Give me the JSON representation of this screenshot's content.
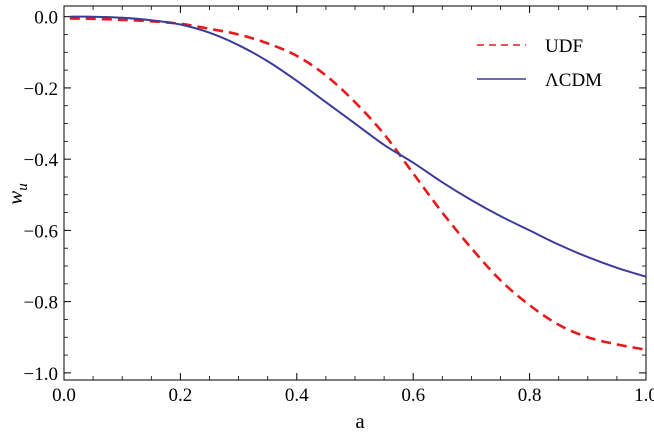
{
  "chart_data": {
    "type": "line",
    "xlabel": "a",
    "ylabel": "w",
    "ylabel_sub": "u",
    "xlim": [
      0.0,
      1.0
    ],
    "ylim": [
      -1.02,
      0.03
    ],
    "x_ticks": [
      0.0,
      0.2,
      0.4,
      0.6,
      0.8,
      1.0
    ],
    "x_tick_labels": [
      "0.0",
      "0.2",
      "0.4",
      "0.6",
      "0.8",
      "1.0"
    ],
    "y_ticks": [
      0.0,
      -0.2,
      -0.4,
      -0.6,
      -0.8,
      -1.0
    ],
    "y_tick_labels": [
      "0.0",
      "−0.2",
      "−0.4",
      "−0.6",
      "−0.8",
      "−1.0"
    ],
    "grid": false,
    "legend_position": "top-right",
    "series": [
      {
        "name": "UDF",
        "color": "#e8191b",
        "style": "dashed",
        "x": [
          0.01,
          0.05,
          0.1,
          0.15,
          0.2,
          0.25,
          0.3,
          0.35,
          0.4,
          0.45,
          0.5,
          0.55,
          0.6,
          0.65,
          0.7,
          0.75,
          0.8,
          0.85,
          0.9,
          0.95,
          1.0
        ],
        "y": [
          -0.005,
          -0.006,
          -0.009,
          -0.013,
          -0.02,
          -0.034,
          -0.05,
          -0.075,
          -0.11,
          -0.165,
          -0.24,
          -0.33,
          -0.44,
          -0.55,
          -0.65,
          -0.74,
          -0.81,
          -0.865,
          -0.9,
          -0.92,
          -0.935
        ]
      },
      {
        "name": "ΛCDM",
        "color": "#3b3b9b",
        "style": "solid",
        "x": [
          0.01,
          0.05,
          0.1,
          0.15,
          0.2,
          0.25,
          0.3,
          0.35,
          0.4,
          0.45,
          0.5,
          0.55,
          0.6,
          0.65,
          0.7,
          0.75,
          0.8,
          0.85,
          0.9,
          0.95,
          1.0
        ],
        "y": [
          0.0,
          0.0,
          -0.003,
          -0.01,
          -0.022,
          -0.045,
          -0.08,
          -0.125,
          -0.18,
          -0.24,
          -0.3,
          -0.36,
          -0.41,
          -0.465,
          -0.515,
          -0.56,
          -0.6,
          -0.64,
          -0.675,
          -0.705,
          -0.73
        ]
      }
    ]
  }
}
